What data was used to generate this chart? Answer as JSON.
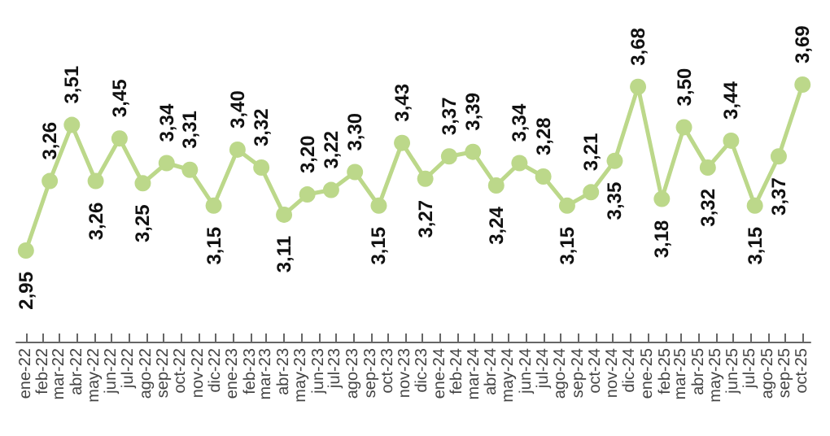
{
  "chart_data": {
    "type": "line",
    "x": [
      "2022-01-01",
      "2022-02-12",
      "2022-03-23",
      "2022-05-04",
      "2022-06-15",
      "2022-07-26",
      "2022-09-06",
      "2022-10-17",
      "2022-11-28",
      "2023-01-09",
      "2023-02-20",
      "2023-04-01",
      "2023-05-12",
      "2023-06-23",
      "2023-08-04",
      "2023-09-15",
      "2023-10-26",
      "2023-12-06",
      "2024-01-17",
      "2024-02-28",
      "2024-04-09",
      "2024-05-20",
      "2024-07-01",
      "2024-08-12",
      "2024-09-23",
      "2024-11-04",
      "2024-12-15",
      "2025-01-26",
      "2025-03-06",
      "2025-04-17",
      "2025-05-28",
      "2025-07-09",
      "2025-08-20",
      "2025-10-01"
    ],
    "series": [
      {
        "color": "#bcd88a",
        "values": [
          2.95,
          3.26,
          3.51,
          3.26,
          3.45,
          3.25,
          3.34,
          3.31,
          3.15,
          3.4,
          3.32,
          3.11,
          3.2,
          3.22,
          3.3,
          3.15,
          3.43,
          3.27,
          3.37,
          3.39,
          3.24,
          3.34,
          3.28,
          3.15,
          3.21,
          3.35,
          3.68,
          3.18,
          3.5,
          3.32,
          3.44,
          3.15,
          3.37,
          3.69
        ],
        "value_labels": [
          "2,95",
          "3,26",
          "3,51",
          "3,26",
          "3,45",
          "3,25",
          "3,34",
          "3,31",
          "3,15",
          "3,40",
          "3,32",
          "3,11",
          "3,20",
          "3,22",
          "3,30",
          "3,15",
          "3,43",
          "3,27",
          "3,37",
          "3,39",
          "3,24",
          "3,34",
          "3,28",
          "3,15",
          "3,21",
          "3,35",
          "3,68",
          "3,18",
          "3,50",
          "3,32",
          "3,44",
          "3,15",
          "3,37",
          "3,69"
        ]
      }
    ],
    "xlim": [
      "2021-12-15",
      "2025-10-15"
    ],
    "xticks": [
      {
        "value": "2022-01",
        "label": "ene-22"
      },
      {
        "value": "2022-02",
        "label": "feb-22"
      },
      {
        "value": "2022-03",
        "label": "mar-22"
      },
      {
        "value": "2022-04",
        "label": "abr-22"
      },
      {
        "value": "2022-05",
        "label": "may-22"
      },
      {
        "value": "2022-06",
        "label": "jun-22"
      },
      {
        "value": "2022-07",
        "label": "jul-22"
      },
      {
        "value": "2022-08",
        "label": "ago-22"
      },
      {
        "value": "2022-09",
        "label": "sep-22"
      },
      {
        "value": "2022-10",
        "label": "oct-22"
      },
      {
        "value": "2022-11",
        "label": "nov-22"
      },
      {
        "value": "2022-12",
        "label": "dic-22"
      },
      {
        "value": "2023-01",
        "label": "ene-23"
      },
      {
        "value": "2023-02",
        "label": "feb-23"
      },
      {
        "value": "2023-03",
        "label": "mar-23"
      },
      {
        "value": "2023-04",
        "label": "abr-23"
      },
      {
        "value": "2023-05",
        "label": "may-23"
      },
      {
        "value": "2023-06",
        "label": "jun-23"
      },
      {
        "value": "2023-07",
        "label": "jul-23"
      },
      {
        "value": "2023-08",
        "label": "ago-23"
      },
      {
        "value": "2023-09",
        "label": "sep-23"
      },
      {
        "value": "2023-10",
        "label": "oct-23"
      },
      {
        "value": "2023-11",
        "label": "nov-23"
      },
      {
        "value": "2023-12",
        "label": "dic-23"
      },
      {
        "value": "2024-01",
        "label": "ene-24"
      },
      {
        "value": "2024-02",
        "label": "feb-24"
      },
      {
        "value": "2024-03",
        "label": "mar-24"
      },
      {
        "value": "2024-04",
        "label": "abr-24"
      },
      {
        "value": "2024-05",
        "label": "may-24"
      },
      {
        "value": "2024-06",
        "label": "jun-24"
      },
      {
        "value": "2024-07",
        "label": "jul-24"
      },
      {
        "value": "2024-08",
        "label": "ago-24"
      },
      {
        "value": "2024-09",
        "label": "sep-24"
      },
      {
        "value": "2024-10",
        "label": "oct-24"
      },
      {
        "value": "2024-11",
        "label": "nov-24"
      },
      {
        "value": "2024-12",
        "label": "dic-24"
      },
      {
        "value": "2025-01",
        "label": "ene-25"
      },
      {
        "value": "2025-02",
        "label": "feb-25"
      },
      {
        "value": "2025-03",
        "label": "mar-25"
      },
      {
        "value": "2025-04",
        "label": "abr-25"
      },
      {
        "value": "2025-05",
        "label": "may-25"
      },
      {
        "value": "2025-06",
        "label": "jun-25"
      },
      {
        "value": "2025-07",
        "label": "jul-25"
      },
      {
        "value": "2025-08",
        "label": "ago-25"
      },
      {
        "value": "2025-09",
        "label": "sep-25"
      },
      {
        "value": "2025-10",
        "label": "oct-25"
      }
    ],
    "tick_labels": "x",
    "marker": "circle",
    "line_style": "solid",
    "grid": false
  }
}
